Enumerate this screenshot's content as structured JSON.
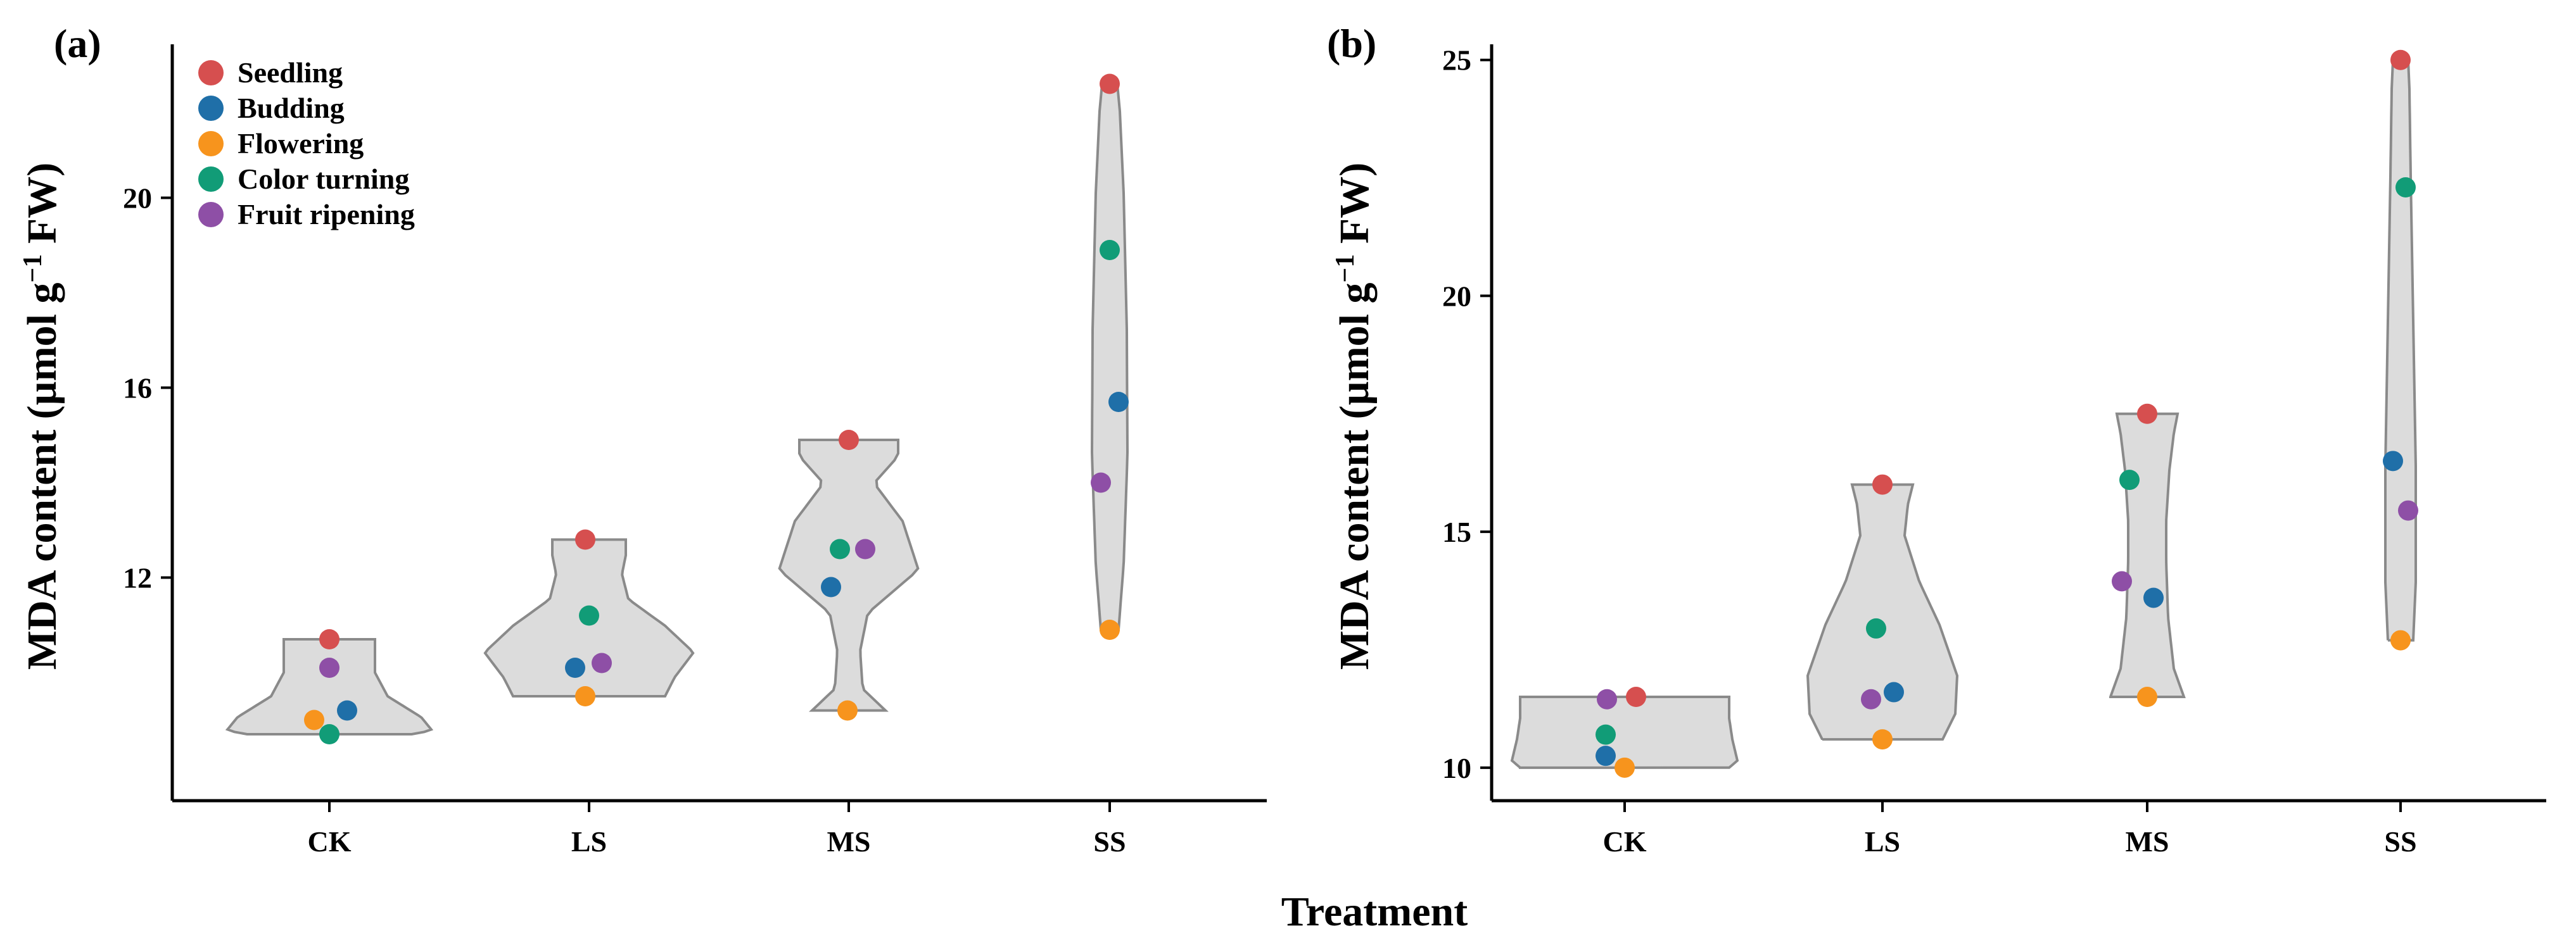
{
  "chart_data": [
    {
      "type": "violin",
      "panel_label": "(a)",
      "ylabel_main": "MDA content (µmol g",
      "ylabel_sup": "−1",
      "ylabel_tail": " FW)",
      "categories": [
        "CK",
        "LS",
        "MS",
        "SS"
      ],
      "ylim": [
        7.3,
        23.5
      ],
      "yticks": [
        12,
        16,
        20
      ],
      "legend": {
        "placement": "top-left"
      },
      "series": [
        {
          "name": "Seedling",
          "color": "#d64f4f",
          "values": [
            10.7,
            12.8,
            14.9,
            22.4
          ]
        },
        {
          "name": "Budding",
          "color": "#1f6fa8",
          "values": [
            9.2,
            10.1,
            11.8,
            15.7
          ]
        },
        {
          "name": "Flowering",
          "color": "#f7941d",
          "values": [
            9.0,
            9.5,
            9.2,
            10.9
          ]
        },
        {
          "name": "Color turning",
          "color": "#119c77",
          "values": [
            8.7,
            11.2,
            12.6,
            18.9
          ]
        },
        {
          "name": "Fruit ripening",
          "color": "#8e4fa6",
          "values": [
            10.1,
            10.2,
            12.6,
            14.0
          ]
        }
      ]
    },
    {
      "type": "violin",
      "panel_label": "(b)",
      "ylabel_main": "MDA content (µmol g",
      "ylabel_sup": "−1",
      "ylabel_tail": " FW)",
      "categories": [
        "CK",
        "LS",
        "MS",
        "SS"
      ],
      "ylim": [
        9.3,
        25.6
      ],
      "yticks": [
        10,
        15,
        20,
        25
      ],
      "series": [
        {
          "name": "Seedling",
          "color": "#d64f4f",
          "values": [
            11.5,
            16.0,
            17.5,
            25.0
          ]
        },
        {
          "name": "Budding",
          "color": "#1f6fa8",
          "values": [
            10.25,
            11.6,
            13.6,
            16.5
          ]
        },
        {
          "name": "Flowering",
          "color": "#f7941d",
          "values": [
            10.0,
            10.6,
            11.5,
            12.7
          ]
        },
        {
          "name": "Color turning",
          "color": "#119c77",
          "values": [
            10.7,
            12.95,
            16.1,
            22.3
          ]
        },
        {
          "name": "Fruit ripening",
          "color": "#8e4fa6",
          "values": [
            11.45,
            11.45,
            13.95,
            15.45
          ]
        }
      ]
    }
  ],
  "shared_xlabel": "Treatment"
}
